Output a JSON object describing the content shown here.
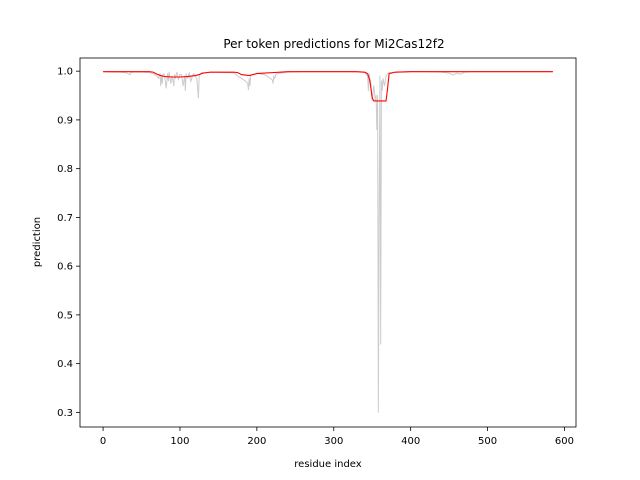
{
  "chart_data": {
    "type": "line",
    "title": "Per token predictions for Mi2Cas12f2",
    "xlabel": "residue index",
    "ylabel": "prediction",
    "xlim": [
      -30,
      615
    ],
    "ylim": [
      0.27,
      1.027
    ],
    "xticks": [
      0,
      100,
      200,
      300,
      400,
      500,
      600
    ],
    "yticks": [
      0.3,
      0.4,
      0.5,
      0.6,
      0.7,
      0.8,
      0.9,
      1.0
    ],
    "xtick_labels": [
      "0",
      "100",
      "200",
      "300",
      "400",
      "500",
      "600"
    ],
    "ytick_labels": [
      "0.3",
      "0.4",
      "0.5",
      "0.6",
      "0.7",
      "0.8",
      "0.9",
      "1.0"
    ],
    "grid": false,
    "series": [
      {
        "role": "raw",
        "color": "#cccccc",
        "x": [
          0,
          10,
          20,
          30,
          35,
          36,
          40,
          50,
          60,
          65,
          70,
          72,
          74,
          75,
          76,
          77,
          78,
          80,
          82,
          84,
          85,
          86,
          88,
          90,
          92,
          93,
          94,
          96,
          98,
          100,
          102,
          104,
          106,
          107,
          108,
          110,
          112,
          114,
          116,
          118,
          120,
          122,
          124,
          125,
          126,
          128,
          130,
          140,
          150,
          160,
          170,
          175,
          180,
          185,
          188,
          189,
          190,
          191,
          192,
          195,
          200,
          205,
          210,
          215,
          220,
          221,
          222,
          223,
          225,
          230,
          240,
          260,
          280,
          300,
          320,
          340,
          344,
          345,
          346,
          348,
          350,
          352,
          354,
          355,
          356,
          357,
          358,
          359,
          360,
          361,
          362,
          363,
          364,
          366,
          368,
          370,
          372,
          380,
          400,
          420,
          440,
          450,
          455,
          460,
          465,
          470,
          480,
          500,
          520,
          540,
          560,
          585
        ],
        "y": [
          0.999,
          0.998,
          0.998,
          0.997,
          0.993,
          0.997,
          0.998,
          0.998,
          0.997,
          0.995,
          0.99,
          0.985,
          0.995,
          0.97,
          0.99,
          0.975,
          0.995,
          0.992,
          0.965,
          0.995,
          0.98,
          0.998,
          0.975,
          0.99,
          0.97,
          0.993,
          0.985,
          0.998,
          0.982,
          0.994,
          0.993,
          0.97,
          0.99,
          0.96,
          0.995,
          0.985,
          0.997,
          0.978,
          0.99,
          0.995,
          0.99,
          0.984,
          0.945,
          0.99,
          0.993,
          0.997,
          0.997,
          0.998,
          0.998,
          0.997,
          0.997,
          0.99,
          0.985,
          0.98,
          0.975,
          0.962,
          0.985,
          0.97,
          0.992,
          0.993,
          0.996,
          0.994,
          0.993,
          0.988,
          0.982,
          0.975,
          0.99,
          0.985,
          0.994,
          0.996,
          0.998,
          0.999,
          0.999,
          0.999,
          0.999,
          0.998,
          0.99,
          0.96,
          0.995,
          0.975,
          0.94,
          0.97,
          0.94,
          0.95,
          0.88,
          0.95,
          0.3,
          0.7,
          0.99,
          0.44,
          0.98,
          0.96,
          0.985,
          0.97,
          0.99,
          0.995,
          0.997,
          0.998,
          0.999,
          0.999,
          0.998,
          0.996,
          0.992,
          0.996,
          0.994,
          0.998,
          0.999,
          0.999,
          0.999,
          0.999,
          0.999,
          0.999
        ]
      },
      {
        "role": "smoothed",
        "color": "#ff0000",
        "x": [
          0,
          30,
          60,
          65,
          70,
          75,
          80,
          90,
          100,
          110,
          115,
          120,
          125,
          130,
          140,
          170,
          175,
          180,
          190,
          195,
          200,
          210,
          220,
          230,
          240,
          300,
          330,
          340,
          344,
          347,
          350,
          352,
          368,
          370,
          372,
          380,
          400,
          500,
          585
        ],
        "y": [
          0.999,
          0.999,
          0.999,
          0.998,
          0.994,
          0.991,
          0.989,
          0.988,
          0.988,
          0.989,
          0.99,
          0.991,
          0.993,
          0.996,
          0.998,
          0.998,
          0.997,
          0.993,
          0.991,
          0.993,
          0.995,
          0.996,
          0.997,
          0.998,
          0.999,
          0.999,
          0.999,
          0.998,
          0.995,
          0.98,
          0.945,
          0.939,
          0.939,
          0.965,
          0.995,
          0.998,
          0.999,
          0.999,
          0.999
        ]
      }
    ]
  }
}
